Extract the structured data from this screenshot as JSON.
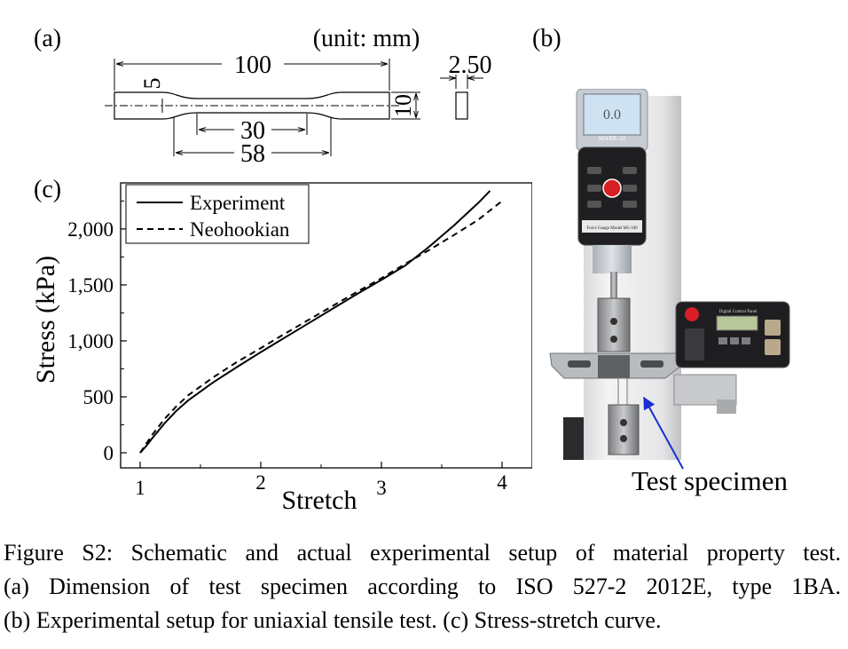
{
  "panels": {
    "a": {
      "label": "(a)",
      "unit_note": "(unit: mm)",
      "dimensions": {
        "overall_length": "100",
        "end_width": "10",
        "narrow_width": "5",
        "thickness": "2.50",
        "narrow_length": "30",
        "gauge_length": "58"
      }
    },
    "b": {
      "label": "(b)",
      "annotation": "Test specimen",
      "device": {
        "display_reading": "0.0",
        "brand": "MARK-10",
        "model_text": "Force Gauge Model M5-100",
        "control_panel_title": "Digital Control Panel"
      }
    },
    "c": {
      "label": "(c)"
    }
  },
  "chart_data": {
    "type": "line",
    "xlabel": "Stretch",
    "ylabel": "Stress (kPa)",
    "xlim": [
      1,
      4
    ],
    "ylim": [
      0,
      2380
    ],
    "xticks": [
      "1",
      "2",
      "3",
      "4"
    ],
    "yticks": [
      "0",
      "500",
      "1,000",
      "1,500",
      "2,000"
    ],
    "xtick_values": [
      1,
      2,
      3,
      4
    ],
    "ytick_values": [
      0,
      500,
      1000,
      1500,
      2000
    ],
    "grid": false,
    "legend_position": "top-left",
    "series": [
      {
        "name": "Experiment",
        "style": "solid",
        "color": "#000000",
        "x": [
          1.0,
          1.05,
          1.1,
          1.2,
          1.3,
          1.4,
          1.6,
          1.8,
          2.0,
          2.2,
          2.4,
          2.6,
          2.8,
          3.0,
          3.2,
          3.4,
          3.6,
          3.8,
          3.9
        ],
        "y": [
          0,
          60,
          130,
          260,
          375,
          470,
          625,
          765,
          900,
          1030,
          1160,
          1290,
          1420,
          1545,
          1675,
          1845,
          2030,
          2230,
          2340
        ]
      },
      {
        "name": "Neohookian",
        "style": "dashed",
        "color": "#000000",
        "x": [
          1.0,
          1.05,
          1.1,
          1.2,
          1.3,
          1.4,
          1.6,
          1.8,
          2.0,
          2.2,
          2.4,
          2.6,
          2.8,
          3.0,
          3.2,
          3.4,
          3.6,
          3.8,
          4.0
        ],
        "y": [
          0,
          80,
          160,
          300,
          415,
          515,
          670,
          810,
          935,
          1065,
          1190,
          1315,
          1440,
          1560,
          1690,
          1815,
          1945,
          2080,
          2250
        ]
      }
    ]
  },
  "caption": {
    "line1": "Figure S2: Schematic and actual experimental setup of material property test.",
    "line2": "(a) Dimension of test specimen according to ISO 527-2 2012E, type 1BA.",
    "line3": "(b) Experimental setup for uniaxial tensile test. (c) Stress-stretch curve."
  }
}
